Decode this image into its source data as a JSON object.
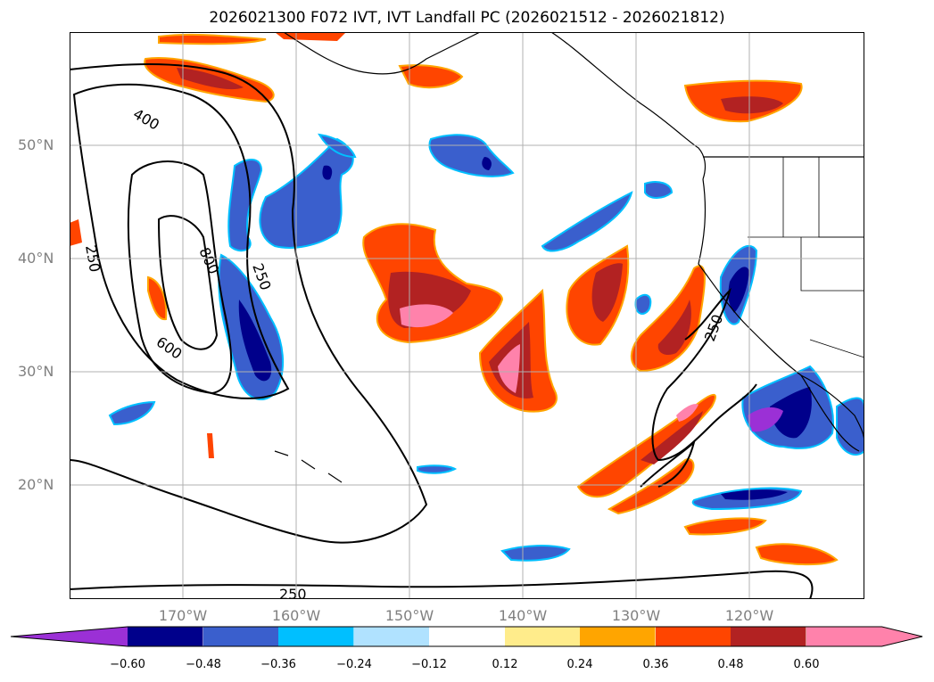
{
  "title": "2026021300 F072 IVT, IVT Landfall PC (2026021512 - 2026021812)",
  "axes": {
    "lat_labels": [
      "50°N",
      "40°N",
      "30°N",
      "20°N"
    ],
    "lon_labels": [
      "170°W",
      "160°W",
      "150°W",
      "140°W",
      "130°W",
      "120°W"
    ],
    "grid": true
  },
  "contours": {
    "line_color": "#000000",
    "labels": [
      "400",
      "250",
      "800",
      "250",
      "600",
      "250",
      "250"
    ]
  },
  "colorbar": {
    "ticks": [
      "−0.60",
      "−0.48",
      "−0.36",
      "−0.24",
      "−0.12",
      "0.12",
      "0.24",
      "0.36",
      "0.48",
      "0.60"
    ],
    "bins": [
      {
        "color": "#9b30d6"
      },
      {
        "color": "#00008b"
      },
      {
        "color": "#3a5fcd"
      },
      {
        "color": "#00bfff"
      },
      {
        "color": "#b0e2ff"
      },
      {
        "color": "#ffffff"
      },
      {
        "color": "#ffec8b"
      },
      {
        "color": "#ffa500"
      },
      {
        "color": "#ff4500"
      },
      {
        "color": "#b22222"
      },
      {
        "color": "#ff82ab"
      },
      {
        "color": "#ff82ab"
      }
    ]
  }
}
